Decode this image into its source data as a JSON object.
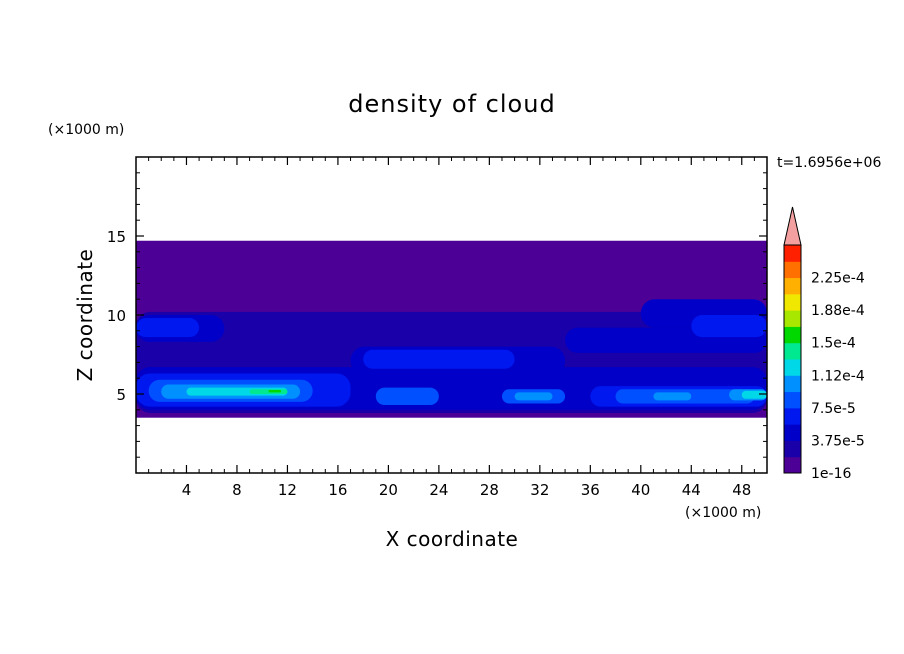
{
  "chart_data": {
    "type": "heatmap",
    "title": "density of cloud",
    "xlabel": "X coordinate",
    "ylabel": "Z coordinate",
    "x_unit": "(×1000 m)",
    "y_unit": "(×1000 m)",
    "time_label": "t=1.6956e+06",
    "xlim": [
      0,
      50
    ],
    "ylim": [
      0,
      20
    ],
    "x_ticks": [
      4,
      8,
      12,
      16,
      20,
      24,
      28,
      32,
      36,
      40,
      44,
      48
    ],
    "y_ticks": [
      5,
      10,
      15
    ],
    "colorbar": {
      "labels": [
        "1e-16",
        "3.75e-5",
        "7.5e-5",
        "1.12e-4",
        "1.5e-4",
        "1.88e-4",
        "2.25e-4"
      ],
      "levels": [
        1e-16,
        1.875e-05,
        3.75e-05,
        5.625e-05,
        7.5e-05,
        9.375e-05,
        0.0001125,
        0.00013125,
        0.00015,
        0.00016875,
        0.0001875,
        0.00020625,
        0.000225,
        0.00024375
      ],
      "colors": [
        "#4d0096",
        "#1a00a8",
        "#0000c8",
        "#0018f0",
        "#0050ff",
        "#0090ff",
        "#00d8e8",
        "#00e890",
        "#00d800",
        "#a8e800",
        "#f0e800",
        "#ffb000",
        "#ff7000",
        "#ff2000"
      ],
      "overflow_color": "#f4a0a0"
    },
    "regions": [
      {
        "level": 0,
        "x": [
          0,
          50
        ],
        "z": [
          3.5,
          14.7
        ]
      },
      {
        "level": 1,
        "x": [
          0,
          50
        ],
        "z": [
          3.8,
          10.2
        ]
      },
      {
        "level": 2,
        "x": [
          0,
          50
        ],
        "z": [
          4.0,
          6.7
        ]
      },
      {
        "level": 2,
        "x": [
          0,
          7
        ],
        "z": [
          8.3,
          10.0
        ]
      },
      {
        "level": 2,
        "x": [
          17,
          34
        ],
        "z": [
          6.2,
          8.0
        ]
      },
      {
        "level": 2,
        "x": [
          34,
          50
        ],
        "z": [
          7.6,
          9.2
        ]
      },
      {
        "level": 2,
        "x": [
          40,
          50
        ],
        "z": [
          9.2,
          11.0
        ]
      },
      {
        "level": 3,
        "x": [
          0,
          17
        ],
        "z": [
          4.2,
          6.3
        ]
      },
      {
        "level": 3,
        "x": [
          0,
          5
        ],
        "z": [
          8.6,
          9.8
        ]
      },
      {
        "level": 3,
        "x": [
          18,
          30
        ],
        "z": [
          6.6,
          7.8
        ]
      },
      {
        "level": 3,
        "x": [
          36,
          50
        ],
        "z": [
          4.2,
          5.5
        ]
      },
      {
        "level": 3,
        "x": [
          44,
          50
        ],
        "z": [
          8.6,
          10.0
        ]
      },
      {
        "level": 4,
        "x": [
          1,
          14
        ],
        "z": [
          4.5,
          5.9
        ]
      },
      {
        "level": 4,
        "x": [
          19,
          24
        ],
        "z": [
          4.3,
          5.4
        ]
      },
      {
        "level": 4,
        "x": [
          29,
          34
        ],
        "z": [
          4.4,
          5.3
        ]
      },
      {
        "level": 4,
        "x": [
          38,
          49
        ],
        "z": [
          4.4,
          5.3
        ]
      },
      {
        "level": 5,
        "x": [
          2,
          13
        ],
        "z": [
          4.7,
          5.6
        ]
      },
      {
        "level": 5,
        "x": [
          30,
          33
        ],
        "z": [
          4.6,
          5.1
        ]
      },
      {
        "level": 5,
        "x": [
          41,
          44
        ],
        "z": [
          4.6,
          5.1
        ]
      },
      {
        "level": 5,
        "x": [
          47,
          50
        ],
        "z": [
          4.6,
          5.3
        ]
      },
      {
        "level": 6,
        "x": [
          4,
          12
        ],
        "z": [
          4.9,
          5.4
        ]
      },
      {
        "level": 6,
        "x": [
          48,
          50
        ],
        "z": [
          4.7,
          5.2
        ]
      },
      {
        "level": 7,
        "x": [
          9,
          12
        ],
        "z": [
          5.0,
          5.3
        ]
      },
      {
        "level": 8,
        "x": [
          10.5,
          11.5
        ],
        "z": [
          5.1,
          5.25
        ]
      }
    ]
  }
}
